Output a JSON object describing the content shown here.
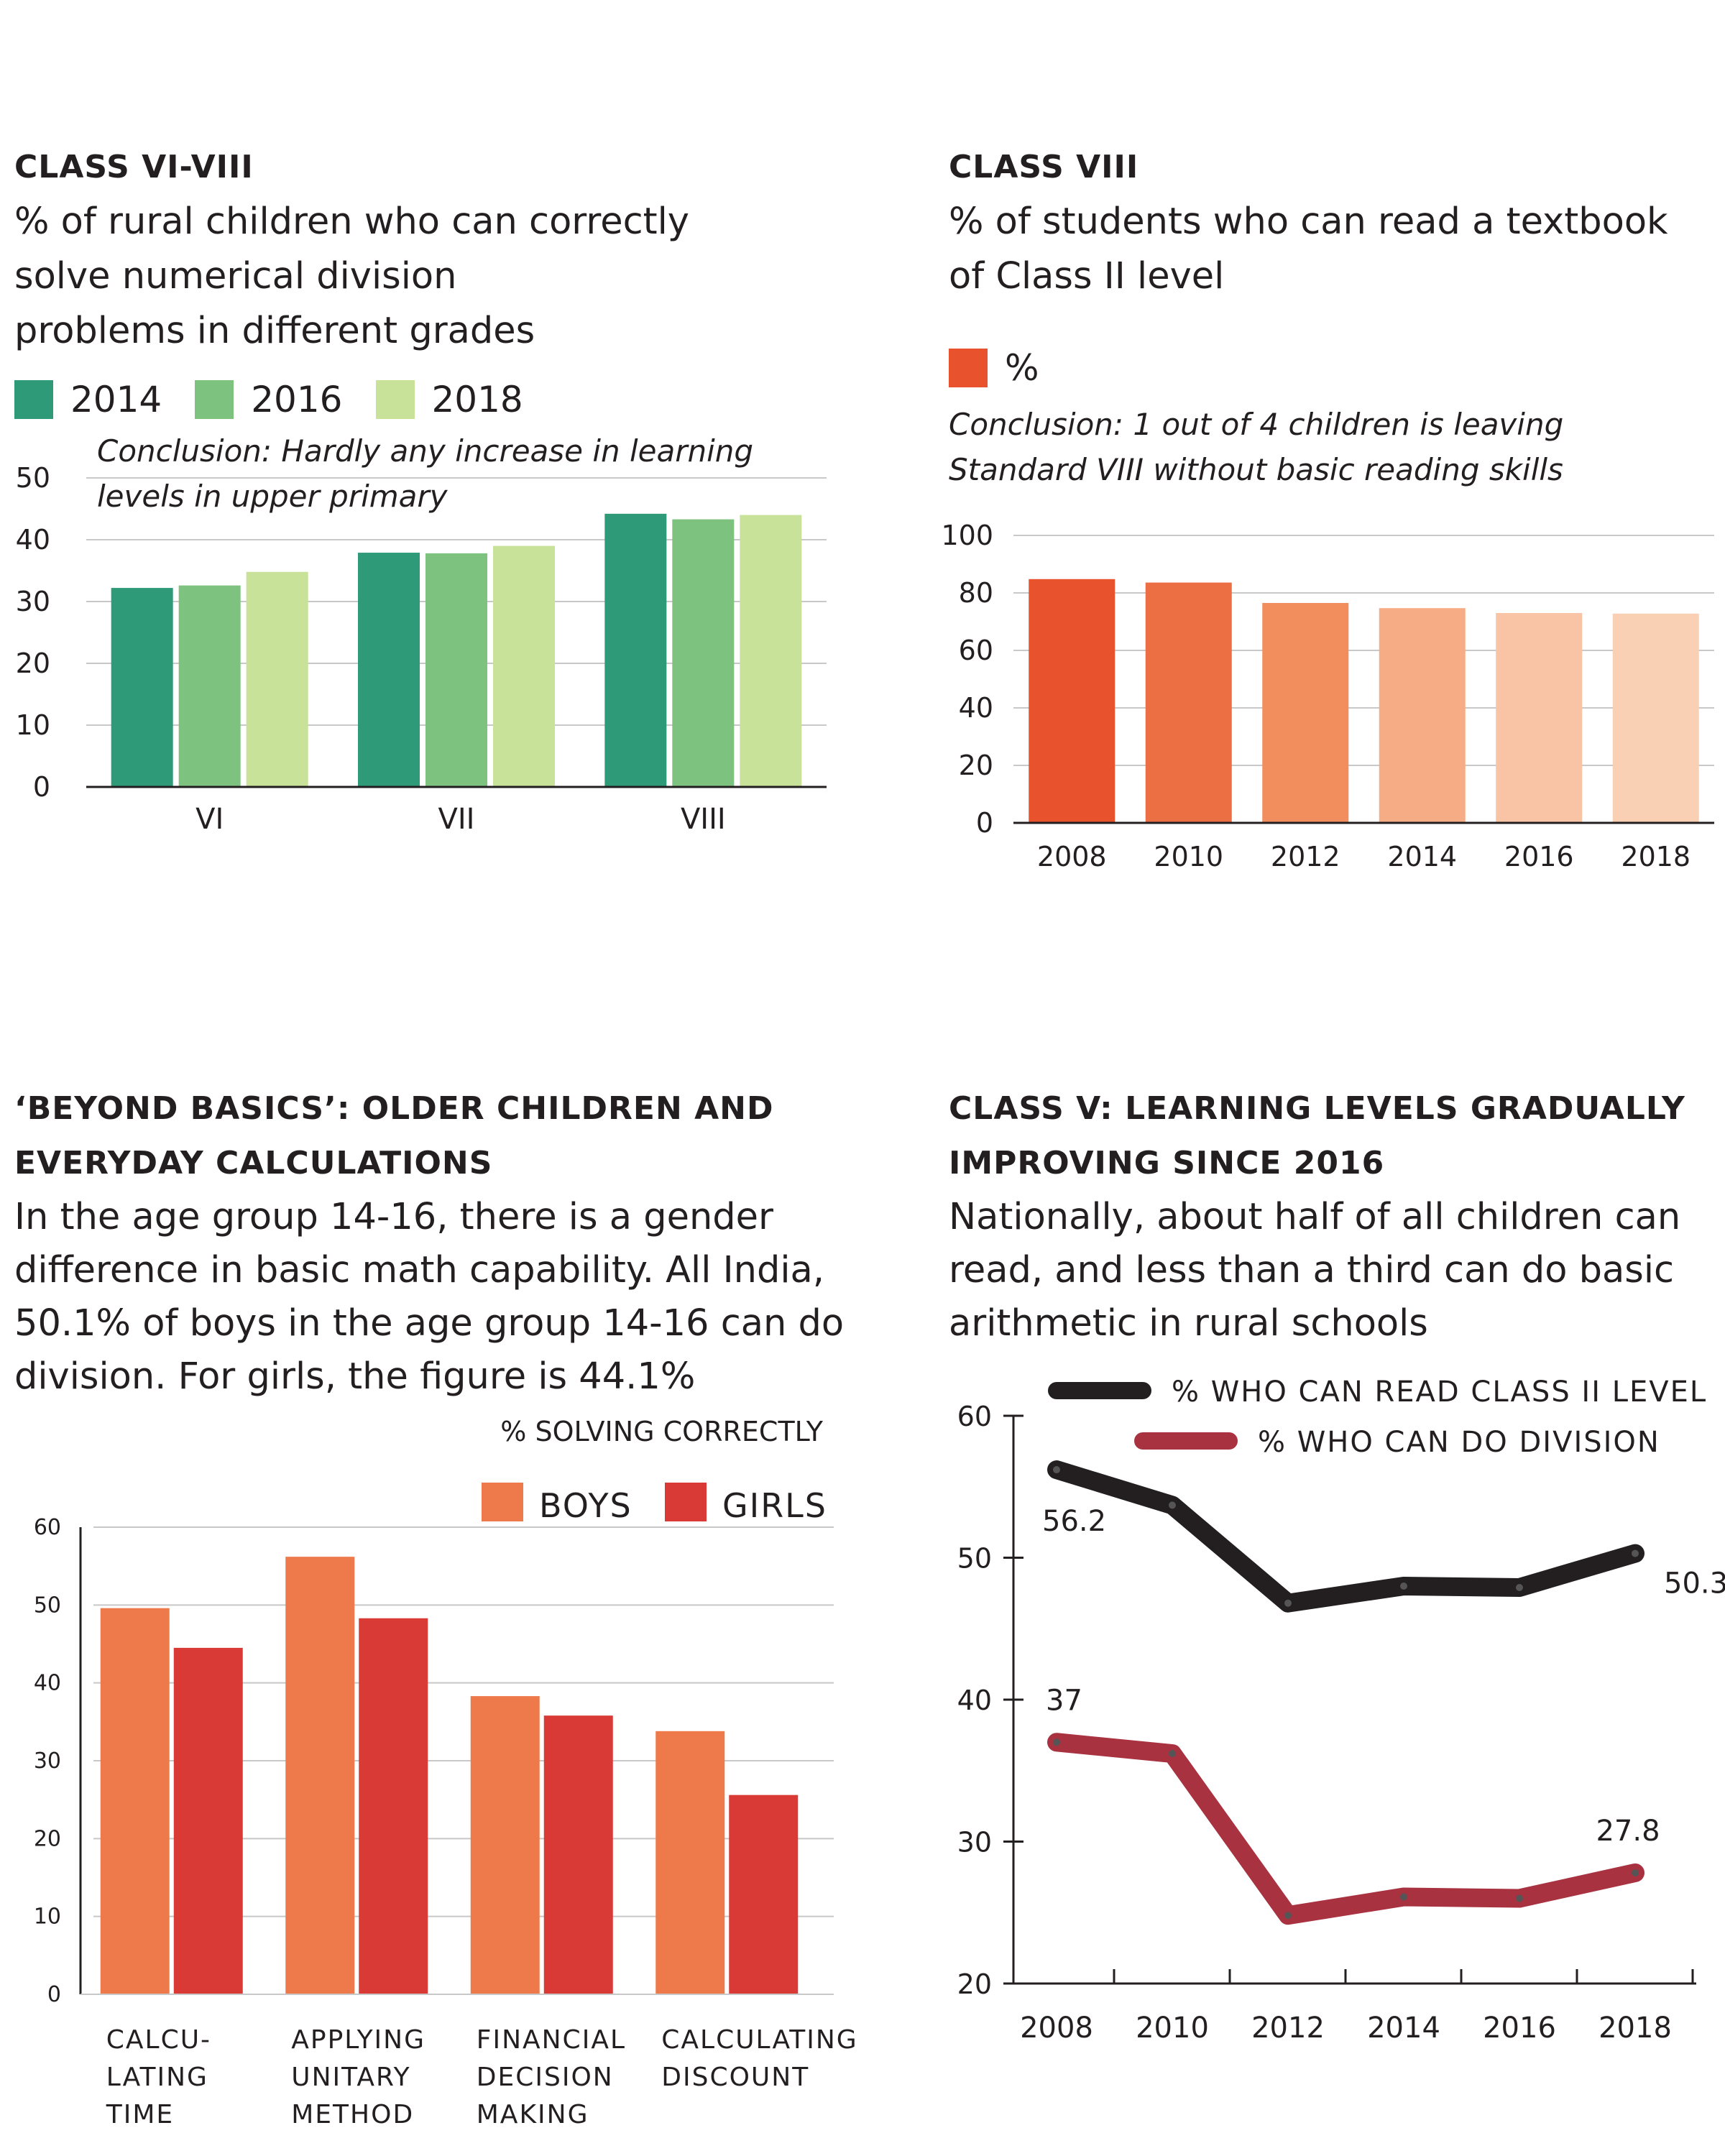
{
  "colors": {
    "text": "#231f20",
    "gridline": "#c8c8c8",
    "green2014": "#2f9a78",
    "green2016": "#7dc27f",
    "green2018": "#c9e29a",
    "boys": "#ee7a4c",
    "girls": "#d93a35",
    "readLine": "#231f20",
    "divisionLine": "#a83240",
    "class8Bars": [
      "#e8522d",
      "#ec6f43",
      "#f28e5e",
      "#f6ac85",
      "#f9c4a5",
      "#fad0b5"
    ]
  },
  "panel1": {
    "kicker": "CLASS VI-VIII",
    "subtitle": "% of rural children who can correctly\nsolve numerical division\nproblems in different grades",
    "conclusion_line1": "Conclusion: Hardly any increase in learning",
    "conclusion_line2": "levels in upper primary"
  },
  "panel2": {
    "kicker": "CLASS VIII",
    "subtitle": "% of students who can read a textbook\nof Class II level",
    "conclusion_line1": "Conclusion: 1 out of 4 children is leaving",
    "conclusion_line2": "Standard VIII without basic reading skills"
  },
  "panel3": {
    "kicker_line1": "‘BEYOND BASICS’: OLDER CHILDREN AND",
    "kicker_line2": "EVERYDAY CALCULATIONS",
    "subtitle": "In the age group 14-16, there is a gender\ndifference in basic math capability. All India,\n50.1% of boys in the age group 14-16 can do\ndivision. For girls, the figure is 44.1%",
    "unit_label": "% SOLVING CORRECTLY"
  },
  "panel4": {
    "kicker_line1": "CLASS V: LEARNING LEVELS GRADUALLY",
    "kicker_line2": "IMPROVING SINCE 2016",
    "subtitle": "Nationally, about half of all children can\nread, and less than a third can do basic\narithmetic in rural schools"
  },
  "chart_data": [
    {
      "type": "bar",
      "categories": [
        "VI",
        "VII",
        "VIII"
      ],
      "series": [
        {
          "name": "2014",
          "values": [
            32.2,
            37.9,
            44.2
          ]
        },
        {
          "name": "2016",
          "values": [
            32.6,
            37.8,
            43.3
          ]
        },
        {
          "name": "2018",
          "values": [
            34.8,
            39.0,
            44.0
          ]
        }
      ],
      "ylim": [
        0,
        50
      ],
      "yticks": [
        "0",
        "10",
        "20",
        "30",
        "40",
        "50"
      ],
      "grid": true
    },
    {
      "type": "bar",
      "categories": [
        "2008",
        "2010",
        "2012",
        "2014",
        "2016",
        "2018"
      ],
      "series": [
        {
          "name": "%",
          "values": [
            84.8,
            83.6,
            76.5,
            74.7,
            73.0,
            72.8
          ]
        }
      ],
      "ylim": [
        0,
        100
      ],
      "yticks": [
        "0",
        "20",
        "40",
        "60",
        "80",
        "100"
      ],
      "grid": true
    },
    {
      "type": "bar",
      "categories": [
        "CALCU-\nLATING\nTIME",
        "APPLYING\nUNITARY\nMETHOD",
        "FINANCIAL\nDECISION\nMAKING",
        "CALCULATING\nDISCOUNT"
      ],
      "series": [
        {
          "name": "BOYS",
          "values": [
            49.6,
            56.2,
            38.3,
            33.8
          ]
        },
        {
          "name": "GIRLS",
          "values": [
            44.5,
            48.3,
            35.8,
            25.6
          ]
        }
      ],
      "ylim": [
        0,
        60
      ],
      "yticks": [
        "0",
        "10",
        "20",
        "30",
        "40",
        "50",
        "60"
      ],
      "grid": true,
      "legend": "top-right"
    },
    {
      "type": "line",
      "x": [
        "2008",
        "2010",
        "2012",
        "2014",
        "2016",
        "2018"
      ],
      "series": [
        {
          "name": "% WHO CAN READ CLASS II LEVEL",
          "values": [
            56.2,
            53.7,
            46.8,
            48.0,
            47.9,
            50.3
          ],
          "labels": [
            "56.2",
            "",
            "",
            "",
            "",
            "50.3"
          ]
        },
        {
          "name": "% WHO CAN DO DIVISION",
          "values": [
            37.0,
            36.2,
            24.8,
            26.1,
            26.0,
            27.8
          ],
          "labels": [
            "37",
            "",
            "",
            "",
            "",
            "27.8"
          ]
        }
      ],
      "ylim": [
        20,
        60
      ],
      "yticks": [
        "20",
        "30",
        "40",
        "50",
        "60"
      ],
      "grid": false,
      "legend": "top"
    }
  ]
}
